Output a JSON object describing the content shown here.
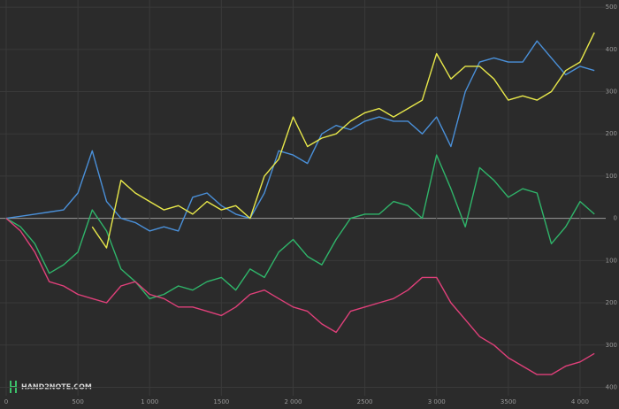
{
  "chart_data": {
    "type": "line",
    "watermark": "HAND2NOTE.COM",
    "x": [
      0,
      100,
      200,
      300,
      400,
      500,
      600,
      700,
      800,
      900,
      1000,
      1100,
      1200,
      1300,
      1400,
      1500,
      1600,
      1700,
      1800,
      1900,
      2000,
      2100,
      2200,
      2300,
      2400,
      2500,
      2600,
      2700,
      2800,
      2900,
      3000,
      3100,
      3200,
      3300,
      3400,
      3500,
      3600,
      3700,
      3800,
      3900,
      4000,
      4100
    ],
    "series": [
      {
        "color": "#4a90d9",
        "values": [
          0,
          5,
          10,
          15,
          20,
          60,
          160,
          40,
          0,
          -10,
          -30,
          -20,
          -30,
          50,
          60,
          30,
          10,
          0,
          60,
          160,
          150,
          130,
          200,
          220,
          210,
          230,
          240,
          230,
          230,
          200,
          240,
          170,
          300,
          370,
          380,
          370,
          370,
          420,
          380,
          340,
          360,
          350
        ]
      },
      {
        "color": "#2fb56a",
        "values": [
          0,
          -20,
          -60,
          -130,
          -110,
          -80,
          20,
          -30,
          -120,
          -150,
          -190,
          -180,
          -160,
          -170,
          -150,
          -140,
          -170,
          -120,
          -140,
          -80,
          -50,
          -90,
          -110,
          -50,
          0,
          10,
          10,
          40,
          30,
          0,
          150,
          70,
          -20,
          120,
          90,
          50,
          70,
          60,
          -60,
          -20,
          40,
          10
        ]
      },
      {
        "color": "#e0407a",
        "values": [
          0,
          -30,
          -80,
          -150,
          -160,
          -180,
          -190,
          -200,
          -160,
          -150,
          -180,
          -190,
          -210,
          -210,
          -220,
          -230,
          -210,
          -180,
          -170,
          -190,
          -210,
          -220,
          -250,
          -270,
          -220,
          -210,
          -200,
          -190,
          -170,
          -140,
          -140,
          -200,
          -240,
          -280,
          -300,
          -330,
          -350,
          -370,
          -370,
          -350,
          -340,
          -320
        ]
      },
      {
        "color": "#e8e84a",
        "values": [
          null,
          null,
          null,
          null,
          null,
          null,
          -20,
          -70,
          90,
          60,
          40,
          20,
          30,
          10,
          40,
          20,
          30,
          0,
          100,
          140,
          240,
          170,
          190,
          200,
          230,
          250,
          260,
          240,
          260,
          280,
          390,
          330,
          360,
          360,
          330,
          280,
          290,
          280,
          300,
          350,
          370,
          440
        ]
      }
    ],
    "xlim": [
      -43,
      4179
    ],
    "ylim": [
      -420,
      517
    ],
    "xticks": [
      0,
      500,
      {
        "value": 1000,
        "label": "1 000"
      },
      1500,
      {
        "value": 2000,
        "label": "2 000"
      },
      2500,
      {
        "value": 3000,
        "label": "3 000"
      },
      3500,
      {
        "value": 4000,
        "label": "4 000"
      }
    ],
    "yticks": [
      500,
      400,
      300,
      200,
      100,
      0,
      {
        "value": -100,
        "label": "100"
      },
      {
        "value": -200,
        "label": "200"
      },
      {
        "value": -300,
        "label": "300"
      },
      {
        "value": -400,
        "label": "400"
      }
    ],
    "grid": true
  }
}
